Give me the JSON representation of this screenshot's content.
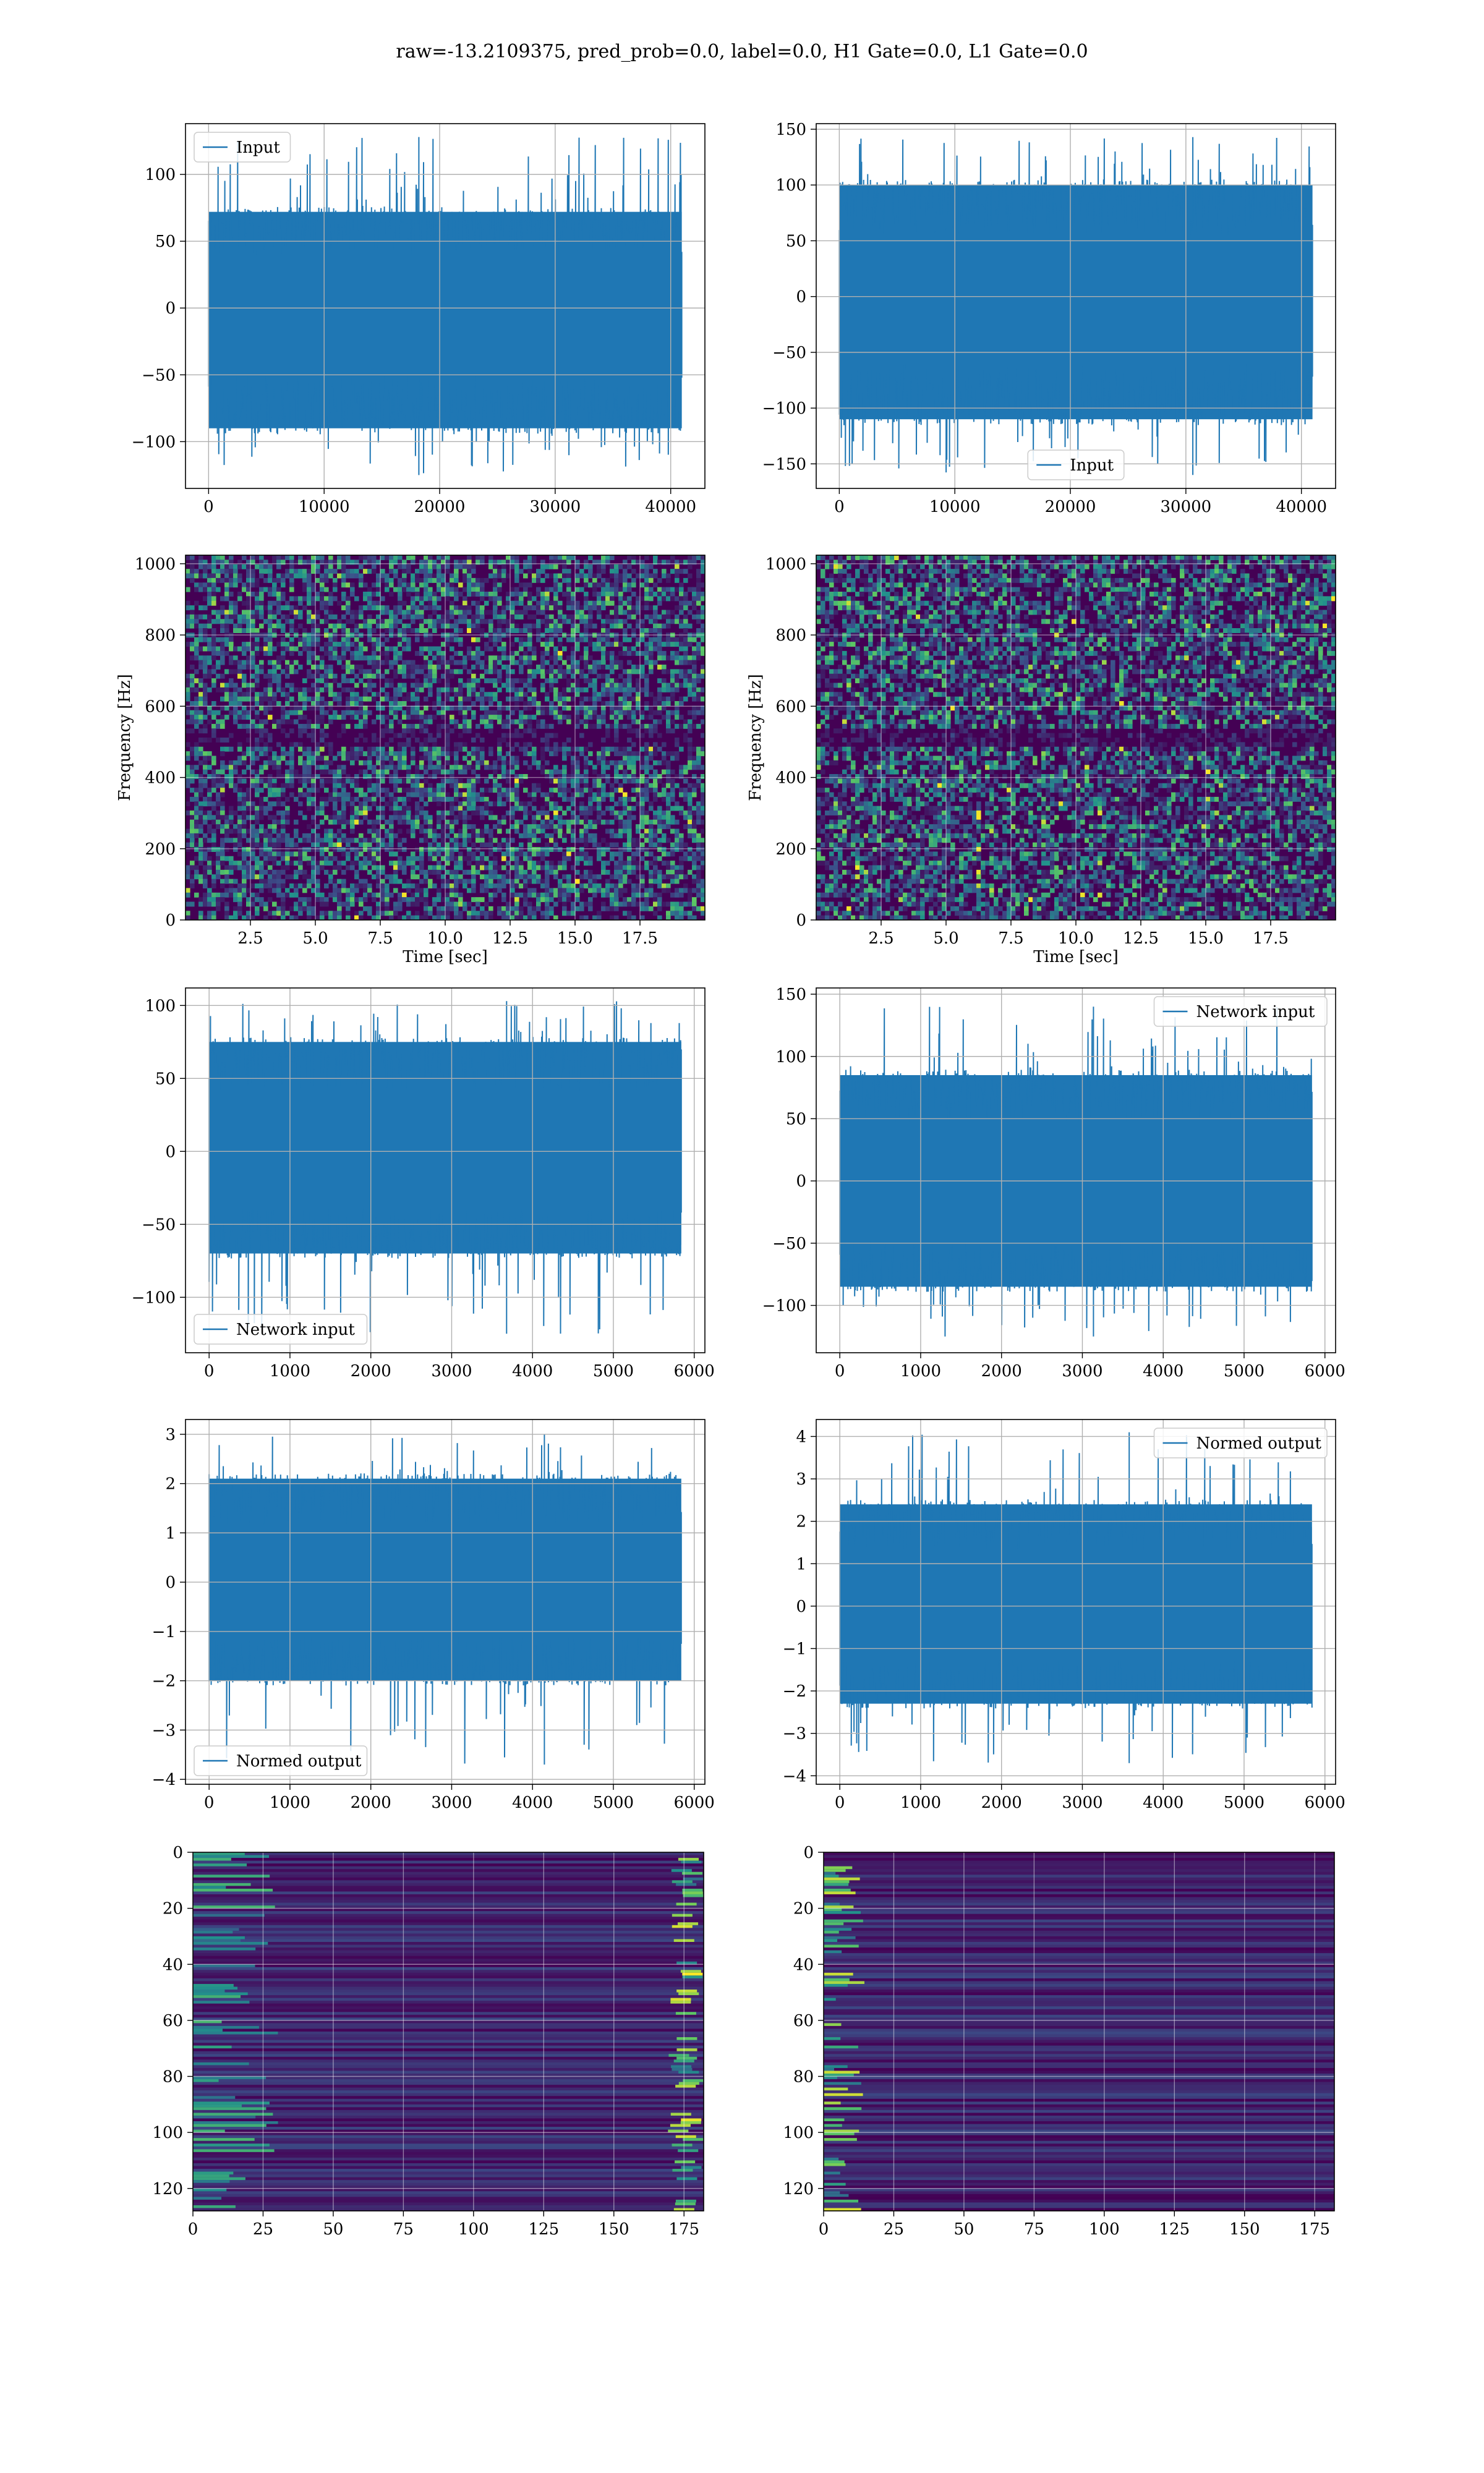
{
  "figure_title": "raw=-13.2109375, pred_prob=0.0, label=0.0, H1 Gate=0.0, L1 Gate=0.0",
  "colors": {
    "line": "#1f77b4",
    "grid": "#b0b0b0",
    "heat_low": "#440154",
    "heat_mid": "#21918c",
    "heat_high": "#fde725"
  },
  "chart_data": [
    {
      "id": "p1",
      "type": "line",
      "title": "",
      "xlabel": "",
      "ylabel": "",
      "xlim": [
        -2000,
        42960
      ],
      "ylim": [
        -135,
        138
      ],
      "xticks": [
        0,
        10000,
        20000,
        30000,
        40000
      ],
      "xtick_labels": [
        "0",
        "10000",
        "20000",
        "30000",
        "40000"
      ],
      "yticks": [
        -100,
        -50,
        0,
        50,
        100
      ],
      "ytick_labels": [
        "−100",
        "−50",
        "0",
        "50",
        "100"
      ],
      "series": [
        {
          "name": "Input",
          "n_samples": 40960,
          "envelope": [
            -90,
            72
          ],
          "peaks": [
            -125,
            128
          ]
        }
      ],
      "legend": "upper-left",
      "grid": true
    },
    {
      "id": "p2",
      "type": "line",
      "title": "",
      "xlabel": "",
      "ylabel": "",
      "xlim": [
        -2000,
        42960
      ],
      "ylim": [
        -172,
        155
      ],
      "xticks": [
        0,
        10000,
        20000,
        30000,
        40000
      ],
      "xtick_labels": [
        "0",
        "10000",
        "20000",
        "30000",
        "40000"
      ],
      "yticks": [
        -150,
        -100,
        -50,
        0,
        50,
        100,
        150
      ],
      "ytick_labels": [
        "−150",
        "−100",
        "−50",
        "0",
        "50",
        "100",
        "150"
      ],
      "series": [
        {
          "name": "Input",
          "n_samples": 40960,
          "envelope": [
            -110,
            100
          ],
          "peaks": [
            -160,
            143
          ]
        }
      ],
      "legend": "lower-center",
      "grid": true
    },
    {
      "id": "p3",
      "type": "heatmap",
      "title": "",
      "xlabel": "Time [sec]",
      "ylabel": "Frequency [Hz]",
      "xlim": [
        0,
        20
      ],
      "ylim": [
        0,
        1024
      ],
      "xticks": [
        2.5,
        5.0,
        7.5,
        10.0,
        12.5,
        15.0,
        17.5
      ],
      "xtick_labels": [
        "2.5",
        "5.0",
        "7.5",
        "10.0",
        "12.5",
        "15.0",
        "17.5"
      ],
      "yticks": [
        0,
        200,
        400,
        600,
        800,
        1000
      ],
      "ytick_labels": [
        "0",
        "200",
        "400",
        "600",
        "800",
        "1000"
      ],
      "colormap": "viridis",
      "dark_band_hz": 510,
      "grid": true
    },
    {
      "id": "p4",
      "type": "heatmap",
      "title": "",
      "xlabel": "Time [sec]",
      "ylabel": "Frequency [Hz]",
      "xlim": [
        0,
        20
      ],
      "ylim": [
        0,
        1024
      ],
      "xticks": [
        2.5,
        5.0,
        7.5,
        10.0,
        12.5,
        15.0,
        17.5
      ],
      "xtick_labels": [
        "2.5",
        "5.0",
        "7.5",
        "10.0",
        "12.5",
        "15.0",
        "17.5"
      ],
      "yticks": [
        0,
        200,
        400,
        600,
        800,
        1000
      ],
      "ytick_labels": [
        "0",
        "200",
        "400",
        "600",
        "800",
        "1000"
      ],
      "colormap": "viridis",
      "dark_band_hz": 510,
      "grid": true
    },
    {
      "id": "p5",
      "type": "line",
      "title": "",
      "xlabel": "",
      "ylabel": "",
      "xlim": [
        -292,
        6132
      ],
      "ylim": [
        -138,
        112
      ],
      "xticks": [
        0,
        1000,
        2000,
        3000,
        4000,
        5000,
        6000
      ],
      "xtick_labels": [
        "0",
        "1000",
        "2000",
        "3000",
        "4000",
        "5000",
        "6000"
      ],
      "yticks": [
        -100,
        -50,
        0,
        50,
        100
      ],
      "ytick_labels": [
        "−100",
        "−50",
        "0",
        "50",
        "100"
      ],
      "series": [
        {
          "name": "Network input",
          "n_samples": 5840,
          "envelope": [
            -70,
            75
          ],
          "peaks": [
            -125,
            103
          ]
        }
      ],
      "legend": "lower-left",
      "grid": true
    },
    {
      "id": "p6",
      "type": "line",
      "title": "",
      "xlabel": "",
      "ylabel": "",
      "xlim": [
        -292,
        6132
      ],
      "ylim": [
        -138,
        155
      ],
      "xticks": [
        0,
        1000,
        2000,
        3000,
        4000,
        5000,
        6000
      ],
      "xtick_labels": [
        "0",
        "1000",
        "2000",
        "3000",
        "4000",
        "5000",
        "6000"
      ],
      "yticks": [
        -100,
        -50,
        0,
        50,
        100,
        150
      ],
      "ytick_labels": [
        "−100",
        "−50",
        "0",
        "50",
        "100",
        "150"
      ],
      "series": [
        {
          "name": "Network input",
          "n_samples": 5840,
          "envelope": [
            -85,
            85
          ],
          "peaks": [
            -125,
            140
          ]
        }
      ],
      "legend": "upper-right",
      "grid": true
    },
    {
      "id": "p7",
      "type": "line",
      "title": "",
      "xlabel": "",
      "ylabel": "",
      "xlim": [
        -292,
        6132
      ],
      "ylim": [
        -4.1,
        3.3
      ],
      "xticks": [
        0,
        1000,
        2000,
        3000,
        4000,
        5000,
        6000
      ],
      "xtick_labels": [
        "0",
        "1000",
        "2000",
        "3000",
        "4000",
        "5000",
        "6000"
      ],
      "yticks": [
        -4,
        -3,
        -2,
        -1,
        0,
        1,
        2,
        3
      ],
      "ytick_labels": [
        "−4",
        "−3",
        "−2",
        "−1",
        "0",
        "1",
        "2",
        "3"
      ],
      "series": [
        {
          "name": "Normed output",
          "n_samples": 5840,
          "envelope": [
            -2.0,
            2.1
          ],
          "peaks": [
            -3.7,
            3.0
          ]
        }
      ],
      "legend": "lower-left",
      "grid": true
    },
    {
      "id": "p8",
      "type": "line",
      "title": "",
      "xlabel": "",
      "ylabel": "",
      "xlim": [
        -292,
        6132
      ],
      "ylim": [
        -4.2,
        4.4
      ],
      "xticks": [
        0,
        1000,
        2000,
        3000,
        4000,
        5000,
        6000
      ],
      "xtick_labels": [
        "0",
        "1000",
        "2000",
        "3000",
        "4000",
        "5000",
        "6000"
      ],
      "yticks": [
        -4,
        -3,
        -2,
        -1,
        0,
        1,
        2,
        3,
        4
      ],
      "ytick_labels": [
        "−4",
        "−3",
        "−2",
        "−1",
        "0",
        "1",
        "2",
        "3",
        "4"
      ],
      "series": [
        {
          "name": "Normed output",
          "n_samples": 5840,
          "envelope": [
            -2.3,
            2.4
          ],
          "peaks": [
            -3.7,
            4.1
          ]
        }
      ],
      "legend": "upper-right",
      "grid": true
    },
    {
      "id": "p9",
      "type": "heatmap",
      "title": "",
      "xlabel": "",
      "ylabel": "",
      "xlim": [
        0,
        182
      ],
      "ylim": [
        128,
        0
      ],
      "rows": 128,
      "cols": 182,
      "xticks": [
        0,
        25,
        50,
        75,
        100,
        125,
        150,
        175
      ],
      "xtick_labels": [
        "0",
        "25",
        "50",
        "75",
        "100",
        "125",
        "150",
        "175"
      ],
      "yticks": [
        0,
        20,
        40,
        60,
        80,
        100,
        120
      ],
      "ytick_labels": [
        "0",
        "20",
        "40",
        "60",
        "80",
        "100",
        "120"
      ],
      "colormap": "viridis",
      "grid": true
    },
    {
      "id": "p10",
      "type": "heatmap",
      "title": "",
      "xlabel": "",
      "ylabel": "",
      "xlim": [
        0,
        182
      ],
      "ylim": [
        128,
        0
      ],
      "rows": 128,
      "cols": 182,
      "xticks": [
        0,
        25,
        50,
        75,
        100,
        125,
        150,
        175
      ],
      "xtick_labels": [
        "0",
        "25",
        "50",
        "75",
        "100",
        "125",
        "150",
        "175"
      ],
      "yticks": [
        0,
        20,
        40,
        60,
        80,
        100,
        120
      ],
      "ytick_labels": [
        "0",
        "20",
        "40",
        "60",
        "80",
        "100",
        "120"
      ],
      "colormap": "viridis",
      "grid": true
    }
  ]
}
